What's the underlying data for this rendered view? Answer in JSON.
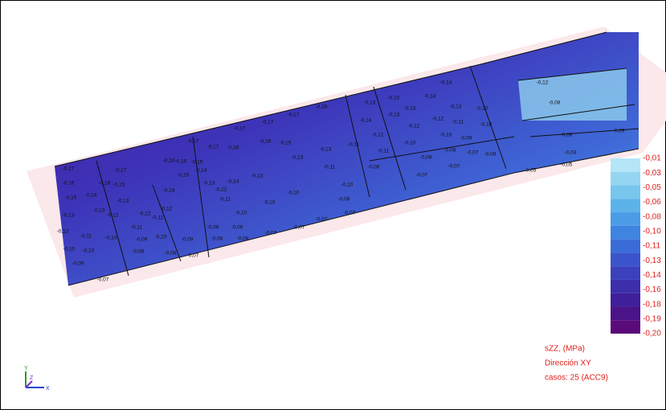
{
  "legend": {
    "labels": [
      "-0,01",
      "-0,03",
      "-0,05",
      "-0,06",
      "-0,08",
      "-0,10",
      "-0,11",
      "-0,13",
      "-0,14",
      "-0,16",
      "-0,18",
      "-0,19",
      "-0,20"
    ],
    "colors": [
      "#b4e6f7",
      "#94d6f2",
      "#78c6ee",
      "#5cb3ea",
      "#4a9ce6",
      "#3f84e0",
      "#3a6cd8",
      "#3a55cc",
      "#3b41bd",
      "#3d2fab",
      "#40209a",
      "#4a1388",
      "#5a0a7a"
    ],
    "info": [
      "sZZ, (MPa)",
      "Dirección XY",
      "casos: 25 (ACC9)"
    ]
  },
  "axes_icon": {
    "y": "Y",
    "z": "Z",
    "x": "X"
  },
  "contour_labels": [
    "-0,14",
    "-0,14",
    "-0,15",
    "-0,13",
    "-0,12",
    "-0,13",
    "-0,13",
    "-0,10",
    "-0,14",
    "-0,13",
    "-0,12",
    "-0,12",
    "-0,11",
    "-0,10",
    "-0,12",
    "-0,10",
    "-0,10",
    "-0,09",
    "-0,11",
    "-0,09",
    "-0,08",
    "-0,07",
    "-0,08",
    "-0,07",
    "-0,07",
    "-0,08",
    "-0,08",
    "-0,09",
    "-0,05",
    "-0,05",
    "-0,03",
    "-0,08",
    "-0,16",
    "-0,17",
    "-0,17",
    "-0,17",
    "-0,17",
    "-0,17",
    "-0,16",
    "-0,16",
    "-0,15",
    "-0,13",
    "-0,13",
    "-0,11",
    "-0,11",
    "-0,10",
    "-0,08",
    "-0,07",
    "-0,07",
    "-0,07",
    "-0,07",
    "-0,08",
    "-0,08",
    "-0,09",
    "-0,09",
    "-0,10",
    "-0,10",
    "-0,10",
    "-0,11",
    "-0,12",
    "-0,13",
    "-0,14",
    "-0,13",
    "-0,14",
    "-0,15",
    "-0,16",
    "-0,18",
    "-0,15",
    "-0,14",
    "-0,12",
    "-0,11",
    "-0,10",
    "-0,09",
    "-0,08",
    "-0,07",
    "-0,08",
    "-0,07",
    "-0,09",
    "-0,10",
    "-0,10",
    "-0,11",
    "-0,12",
    "-0,13",
    "-0,15",
    "-0,16",
    "-0,17",
    "-0,17",
    "-0,16",
    "-0,15",
    "-0,14",
    "-0,13",
    "-0,12",
    "-0,13",
    "-0,12",
    "-0,11",
    "-0,10",
    "-0,09"
  ]
}
